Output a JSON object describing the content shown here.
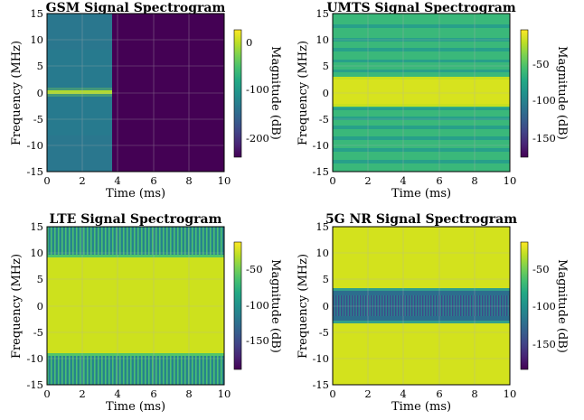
{
  "chart_data": [
    {
      "type": "heatmap",
      "title": "GSM Signal Spectrogram",
      "xlabel": "Time (ms)",
      "ylabel": "Frequency (MHz)",
      "xlim": [
        0,
        10
      ],
      "ylim": [
        -15,
        15
      ],
      "xticks": [
        "0",
        "2",
        "4",
        "6",
        "8",
        "10"
      ],
      "yticks": [
        "-15",
        "-10",
        "-5",
        "0",
        "5",
        "10",
        "15"
      ],
      "colorbar": {
        "label": "Magnitude (dB)",
        "range": [
          -245,
          20
        ],
        "ticks": [
          "0",
          "-100",
          "-200"
        ]
      },
      "description": "Narrow bright carrier at 0 MHz from 0 to ~3.7 ms over a teal/blue background (~-110 to -130 dB); after ~3.7 ms the spectrum drops to ~-245 dB (floor).",
      "signal_end_ms": 3.7,
      "carrier_freq_mhz": 0,
      "grid": true
    },
    {
      "type": "heatmap",
      "title": "UMTS Signal Spectrogram",
      "xlabel": "Time (ms)",
      "ylabel": "Frequency (MHz)",
      "xlim": [
        0,
        10
      ],
      "ylim": [
        -15,
        15
      ],
      "xticks": [
        "0",
        "2",
        "4",
        "6",
        "8",
        "10"
      ],
      "yticks": [
        "-15",
        "-10",
        "-5",
        "0",
        "5",
        "10",
        "15"
      ],
      "colorbar": {
        "label": "Magnitude (dB)",
        "range": [
          -175,
          -5
        ],
        "ticks": [
          "-50",
          "-100",
          "-150"
        ]
      },
      "description": "Broad yellow-green band around 0 MHz (about -3 to +3 MHz) with alternating horizontal stripes elsewhere across the full time span.",
      "grid": true
    },
    {
      "type": "heatmap",
      "title": "LTE Signal Spectrogram",
      "xlabel": "Time (ms)",
      "ylabel": "Frequency (MHz)",
      "xlim": [
        0,
        10
      ],
      "ylim": [
        -15,
        15
      ],
      "xticks": [
        "0",
        "2",
        "4",
        "6",
        "8",
        "10"
      ],
      "yticks": [
        "-15",
        "-10",
        "-5",
        "0",
        "5",
        "10",
        "15"
      ],
      "colorbar": {
        "label": "Magnitude (dB)",
        "range": [
          -185,
          -5
        ],
        "ticks": [
          "-50",
          "-100",
          "-150"
        ]
      },
      "description": "Flat yellow occupied band between -9 and +9 MHz; outside the band vertical streaks of teal/green across all time.",
      "band_mhz": [
        -9,
        9
      ],
      "grid": true
    },
    {
      "type": "heatmap",
      "title": "5G NR Signal Spectrogram",
      "xlabel": "Time (ms)",
      "ylabel": "Frequency (MHz)",
      "xlim": [
        0,
        10
      ],
      "ylim": [
        -15,
        15
      ],
      "xticks": [
        "0",
        "2",
        "4",
        "6",
        "8",
        "10"
      ],
      "yticks": [
        "-15",
        "-10",
        "-5",
        "0",
        "5",
        "10",
        "15"
      ],
      "colorbar": {
        "label": "Magnitude (dB)",
        "range": [
          -180,
          -5
        ],
        "ticks": [
          "-50",
          "-100",
          "-150"
        ]
      },
      "description": "Yellow background across the spectrum with a dark blue notch band from about -3 to +3 MHz over all time.",
      "notch_mhz": [
        -3,
        3
      ],
      "grid": true
    }
  ]
}
